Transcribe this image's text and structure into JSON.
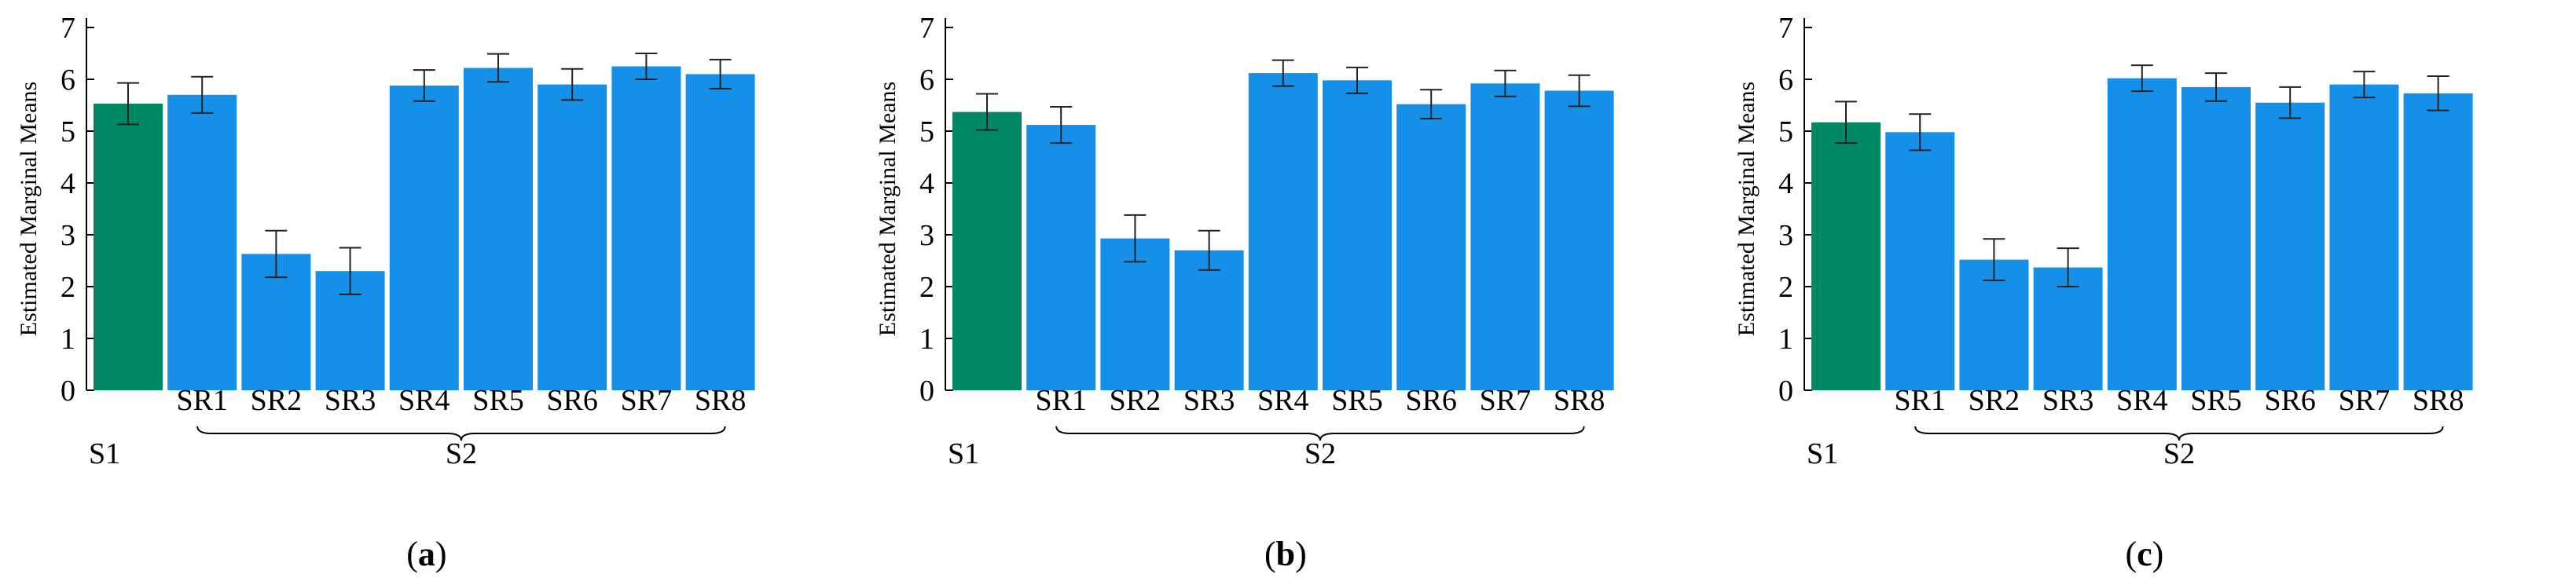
{
  "colors": {
    "s1_bar": "#008864",
    "s2_bar": "#1590e8",
    "axis": "#000000",
    "error_bar": "#222222"
  },
  "chart_data": [
    {
      "type": "bar",
      "panel_label": "a",
      "ylabel": "Estimated Marginal Means",
      "ylim": [
        0,
        7
      ],
      "yticks": [
        0,
        1,
        2,
        3,
        4,
        5,
        6,
        7
      ],
      "categories": [
        "S1",
        "SR1",
        "SR2",
        "SR3",
        "SR4",
        "SR5",
        "SR6",
        "SR7",
        "SR8"
      ],
      "group_labels": {
        "first": "S1",
        "second": "S2"
      },
      "values": [
        5.53,
        5.7,
        2.63,
        2.3,
        5.88,
        6.22,
        5.9,
        6.25,
        6.1
      ],
      "error": [
        0.4,
        0.35,
        0.45,
        0.45,
        0.3,
        0.27,
        0.3,
        0.25,
        0.28
      ]
    },
    {
      "type": "bar",
      "panel_label": "b",
      "ylabel": "Estimated Marginal Means",
      "ylim": [
        0,
        7
      ],
      "yticks": [
        0,
        1,
        2,
        3,
        4,
        5,
        6,
        7
      ],
      "categories": [
        "S1",
        "SR1",
        "SR2",
        "SR3",
        "SR4",
        "SR5",
        "SR6",
        "SR7",
        "SR8"
      ],
      "group_labels": {
        "first": "S1",
        "second": "S2"
      },
      "values": [
        5.37,
        5.12,
        2.93,
        2.7,
        6.12,
        5.98,
        5.52,
        5.92,
        5.78
      ],
      "error": [
        0.35,
        0.35,
        0.45,
        0.38,
        0.25,
        0.25,
        0.28,
        0.25,
        0.3
      ]
    },
    {
      "type": "bar",
      "panel_label": "c",
      "ylabel": "Estimated Marginal Means",
      "ylim": [
        0,
        7
      ],
      "yticks": [
        0,
        1,
        2,
        3,
        4,
        5,
        6,
        7
      ],
      "categories": [
        "S1",
        "SR1",
        "SR2",
        "SR3",
        "SR4",
        "SR5",
        "SR6",
        "SR7",
        "SR8"
      ],
      "group_labels": {
        "first": "S1",
        "second": "S2"
      },
      "values": [
        5.17,
        4.98,
        2.52,
        2.37,
        6.02,
        5.85,
        5.55,
        5.9,
        5.73
      ],
      "error": [
        0.4,
        0.35,
        0.4,
        0.37,
        0.25,
        0.27,
        0.3,
        0.25,
        0.33
      ]
    }
  ]
}
